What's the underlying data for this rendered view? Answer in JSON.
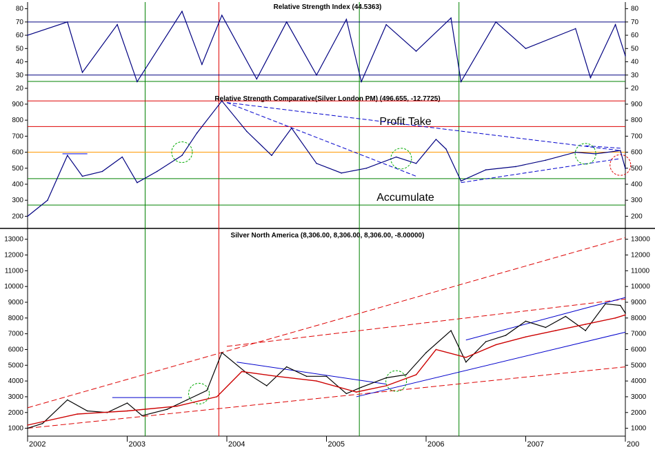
{
  "chart_data": [
    {
      "type": "line",
      "title": "Relative Strength Index (44.5363)",
      "ylim": [
        20,
        85
      ],
      "yticks": [
        20,
        30,
        40,
        50,
        60,
        70,
        80
      ],
      "ytick_labels": [
        "20",
        "30",
        "40",
        "50",
        "60",
        "70",
        "80"
      ],
      "reference_lines": [
        70,
        30
      ],
      "series": [
        {
          "x": [
            2002.0,
            2002.4,
            2002.55,
            2002.9,
            2003.1,
            2003.55,
            2003.75,
            2003.95,
            2004.3,
            2004.6,
            2004.9,
            2005.2,
            2005.35,
            2005.6,
            2005.9,
            2006.25,
            2006.35,
            2006.7,
            2007.0,
            2007.5,
            2007.65,
            2007.9,
            2008.0
          ],
          "values": [
            60,
            70,
            32,
            68,
            25,
            78,
            38,
            75,
            27,
            70,
            30,
            72,
            25,
            68,
            48,
            73,
            25,
            70,
            50,
            65,
            28,
            68,
            44.5
          ],
          "color": "#000080"
        }
      ]
    },
    {
      "type": "line",
      "title": "Relative Strength Comparative(Silver London PM) (496.655, -12.7725)",
      "ylim": [
        150,
        960
      ],
      "yticks": [
        200,
        300,
        400,
        500,
        600,
        700,
        800,
        900
      ],
      "ytick_labels": [
        "200",
        "300",
        "400",
        "500",
        "600",
        "700",
        "800",
        "900"
      ],
      "annotations": [
        "Profit Take",
        "Accumulate"
      ],
      "series": [
        {
          "x": [
            2002.0,
            2002.2,
            2002.4,
            2002.55,
            2002.75,
            2002.95,
            2003.1,
            2003.3,
            2003.55,
            2003.7,
            2003.95,
            2004.2,
            2004.45,
            2004.65,
            2004.9,
            2005.15,
            2005.4,
            2005.7,
            2005.9,
            2006.1,
            2006.2,
            2006.35,
            2006.6,
            2006.9,
            2007.2,
            2007.5,
            2007.7,
            2007.95,
            2008.0
          ],
          "values": [
            200,
            300,
            580,
            450,
            480,
            570,
            410,
            480,
            580,
            720,
            920,
            730,
            580,
            750,
            530,
            470,
            500,
            570,
            530,
            680,
            620,
            420,
            490,
            510,
            550,
            600,
            590,
            610,
            497
          ],
          "color": "#000080"
        }
      ]
    },
    {
      "type": "line",
      "title": "Silver North America (8,306.00, 8,306.00, 8,306.00, -8.00000)",
      "ylim": [
        500,
        13600
      ],
      "yticks": [
        1000,
        2000,
        3000,
        4000,
        5000,
        6000,
        7000,
        8000,
        9000,
        10000,
        11000,
        12000,
        13000
      ],
      "ytick_labels": [
        "1000",
        "2000",
        "3000",
        "4000",
        "5000",
        "6000",
        "7000",
        "8000",
        "9000",
        "10000",
        "11000",
        "12000",
        "13000"
      ],
      "xlabels": [
        "2002",
        "2003",
        "2004",
        "2005",
        "2006",
        "2007",
        "200"
      ],
      "series": [
        {
          "x": [
            2002.0,
            2002.15,
            2002.4,
            2002.6,
            2002.8,
            2003.0,
            2003.15,
            2003.4,
            2003.6,
            2003.8,
            2003.95,
            2004.2,
            2004.4,
            2004.6,
            2004.8,
            2005.0,
            2005.2,
            2005.35,
            2005.6,
            2005.8,
            2006.0,
            2006.25,
            2006.4,
            2006.6,
            2006.8,
            2007.0,
            2007.2,
            2007.4,
            2007.6,
            2007.8,
            2007.95,
            2008.0
          ],
          "values": [
            1000,
            1300,
            2800,
            2100,
            2000,
            2600,
            1800,
            2200,
            2800,
            3400,
            5800,
            4500,
            3700,
            4900,
            4300,
            4300,
            3200,
            3600,
            4200,
            4400,
            5800,
            7200,
            5200,
            6500,
            6900,
            7800,
            7400,
            8100,
            7200,
            8900,
            8800,
            8306
          ],
          "color": "#000000"
        },
        {
          "x": [
            2002.0,
            2002.5,
            2003.0,
            2003.5,
            2003.9,
            2004.15,
            2004.5,
            2004.9,
            2005.3,
            2005.6,
            2005.9,
            2006.1,
            2006.4,
            2006.7,
            2007.0,
            2007.3,
            2007.6,
            2007.9,
            2008.0
          ],
          "values": [
            1200,
            1900,
            2100,
            2400,
            3000,
            4600,
            4300,
            4000,
            3300,
            3700,
            4400,
            6000,
            5500,
            6300,
            6800,
            7200,
            7600,
            8000,
            8200
          ],
          "color": "#cc0000"
        }
      ]
    }
  ]
}
